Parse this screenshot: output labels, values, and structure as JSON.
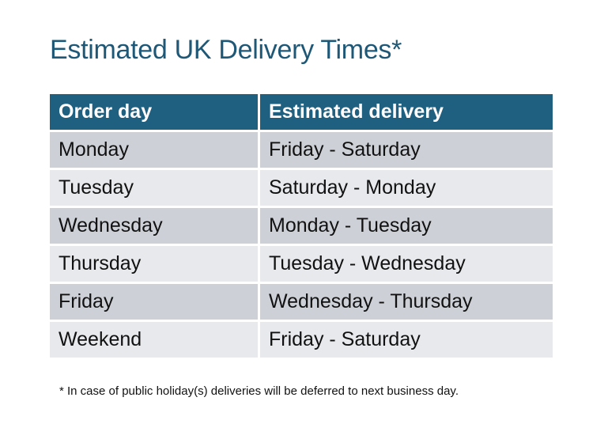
{
  "title": "Estimated UK Delivery Times*",
  "table": {
    "headers": [
      "Order day",
      "Estimated delivery"
    ],
    "rows": [
      [
        "Monday",
        "Friday - Saturday"
      ],
      [
        "Tuesday",
        "Saturday - Monday"
      ],
      [
        "Wednesday",
        "Monday - Tuesday"
      ],
      [
        "Thursday",
        "Tuesday - Wednesday"
      ],
      [
        "Friday",
        "Wednesday - Thursday"
      ],
      [
        "Weekend",
        "Friday - Saturday"
      ]
    ]
  },
  "footnote": "* In case of public holiday(s) deliveries will be deferred to next business day.",
  "colors": {
    "header": "#1f5f80",
    "title": "#1e5876",
    "row_dark": "#cdd1d7",
    "row_light": "#e7e9ec"
  }
}
